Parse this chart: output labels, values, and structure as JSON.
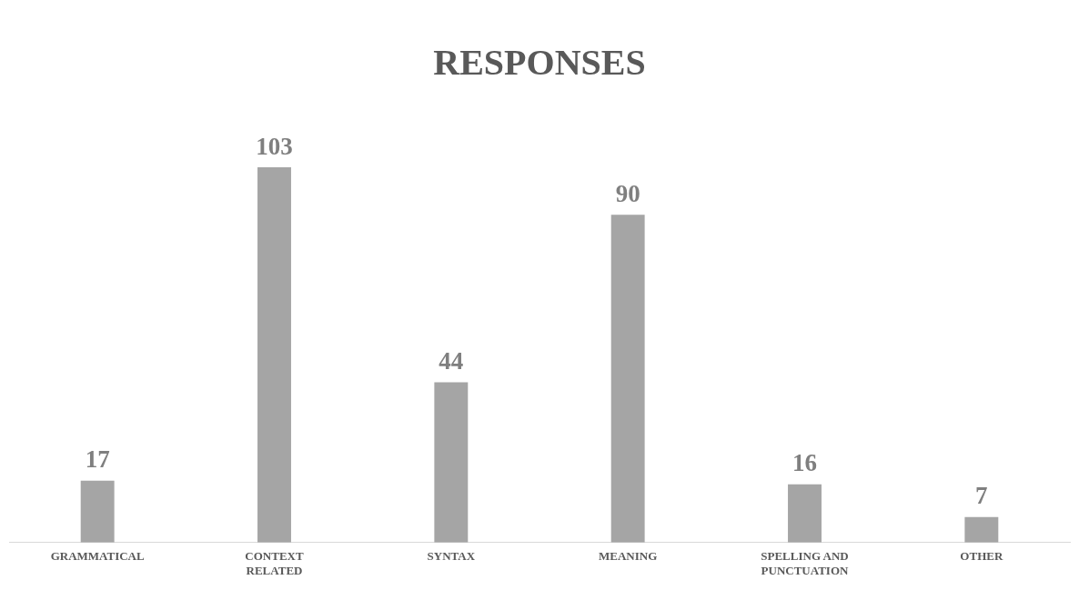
{
  "chart_data": {
    "type": "bar",
    "title": "RESPONSES",
    "categories": [
      "GRAMMATICAL",
      "CONTEXT RELATED",
      "SYNTAX",
      "MEANING",
      "SPELLING AND PUNCTUATION",
      "OTHER"
    ],
    "values": [
      17,
      103,
      44,
      90,
      16,
      7
    ],
    "color": "#a5a5a5",
    "data_labels": true,
    "grid": false,
    "legend": false
  }
}
